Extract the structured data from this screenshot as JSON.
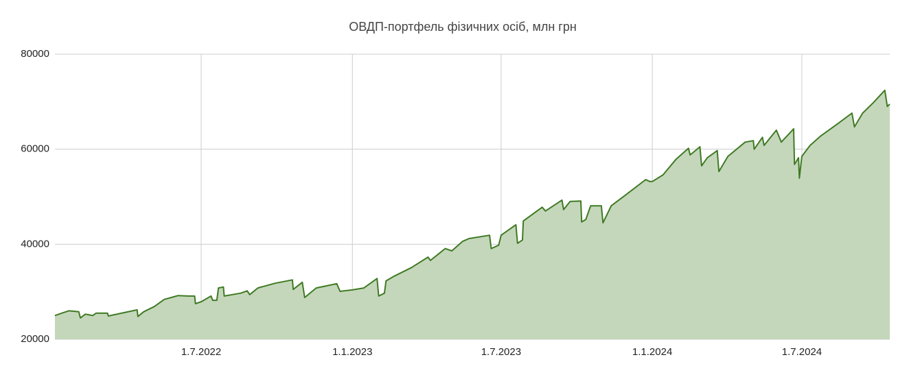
{
  "chart_data": {
    "type": "area",
    "title": "ОВДП-портфель фізичних осіб, млн грн",
    "x": [
      "4.1.2022",
      "14.1.2022",
      "21.1.2022",
      "2.2.2022",
      "4.2.2022",
      "10.2.2022",
      "19.2.2022",
      "23.2.2022",
      "9.3.2022",
      "10.3.2022",
      "14.4.2022",
      "15.4.2022",
      "22.4.2022",
      "5.5.2022",
      "17.5.2022",
      "3.6.2022",
      "16.6.2022",
      "23.6.2022",
      "24.6.2022",
      "1.7.2022",
      "13.7.2022",
      "15.7.2022",
      "20.7.2022",
      "22.7.2022",
      "28.7.2022",
      "29.7.2022",
      "18.8.2022",
      "26.8.2022",
      "29.8.2022",
      "8.9.2022",
      "29.9.2022",
      "20.10.2022",
      "21.10.2022",
      "1.11.2022",
      "4.11.2022",
      "18.11.2022",
      "13.12.2022",
      "17.12.2022",
      "1.1.2023",
      "15.1.2023",
      "31.1.2023",
      "2.2.2023",
      "9.2.2023",
      "11.2.2023",
      "21.2.2023",
      "14.3.2023",
      "3.4.2023",
      "6.4.2023",
      "24.4.2023",
      "2.5.2023",
      "15.5.2023",
      "23.5.2023",
      "17.6.2023",
      "19.6.2023",
      "28.6.2023",
      "1.7.2023",
      "19.7.2023",
      "21.7.2023",
      "27.7.2023",
      "28.7.2023",
      "20.8.2023",
      "24.8.2023",
      "13.9.2023",
      "15.9.2023",
      "23.9.2023",
      "6.10.2023",
      "7.10.2023",
      "12.10.2023",
      "18.10.2023",
      "31.10.2023",
      "2.11.2023",
      "12.11.2023",
      "29.11.2023",
      "24.12.2023",
      "29.12.2023",
      "1.1.2024",
      "14.1.2024",
      "30.1.2024",
      "14.2.2024",
      "16.2.2024",
      "28.2.2024",
      "1.3.2024",
      "8.3.2024",
      "20.3.2024",
      "22.3.2024",
      "2.4.2024",
      "23.4.2024",
      "3.5.2024",
      "4.5.2024",
      "14.5.2024",
      "16.5.2024",
      "31.5.2024",
      "6.6.2024",
      "21.6.2024",
      "22.6.2024",
      "27.6.2024",
      "28.6.2024",
      "1.7.2024",
      "11.7.2024",
      "24.7.2024",
      "14.8.2024",
      "31.8.2024",
      "3.9.2024",
      "13.9.2024",
      "26.9.2024",
      "10.10.2024",
      "13.10.2024",
      "16.10.2024"
    ],
    "series": [
      {
        "name": "ОВДП-портфель фізичних осіб",
        "color": "#3f7a23",
        "fill": "#c4d7bb",
        "values": [
          25000,
          25600,
          26000,
          25800,
          24500,
          25300,
          25000,
          25500,
          25500,
          24900,
          26200,
          24800,
          25800,
          26900,
          28400,
          29200,
          29100,
          29100,
          27500,
          27900,
          29100,
          28200,
          28200,
          30800,
          31000,
          29100,
          29700,
          30200,
          29400,
          30800,
          31800,
          32500,
          30500,
          32000,
          28800,
          30800,
          31700,
          30100,
          30400,
          30800,
          32800,
          29100,
          29700,
          32300,
          33300,
          35100,
          37300,
          36600,
          39100,
          38600,
          40600,
          41200,
          41900,
          39100,
          39800,
          41900,
          44100,
          40200,
          40900,
          44900,
          47800,
          47000,
          49300,
          47300,
          49000,
          49100,
          44700,
          45200,
          48100,
          48100,
          44500,
          48100,
          50300,
          53600,
          53200,
          53200,
          54600,
          57900,
          60200,
          58800,
          60500,
          56500,
          58200,
          59700,
          55300,
          58500,
          61500,
          61800,
          60000,
          62500,
          60800,
          64000,
          61500,
          64300,
          56800,
          58200,
          53900,
          58500,
          60800,
          62800,
          65400,
          67600,
          64700,
          67600,
          69800,
          72400,
          69000,
          69500
        ]
      }
    ],
    "xlim": [
      "4.1.2022",
      "16.10.2024"
    ],
    "xticks": [
      "1.7.2022",
      "1.1.2023",
      "1.7.2023",
      "1.1.2024",
      "1.7.2024"
    ],
    "ylim": [
      20000,
      80000
    ],
    "yticks": [
      20000,
      40000,
      60000,
      80000
    ],
    "grid": true
  }
}
